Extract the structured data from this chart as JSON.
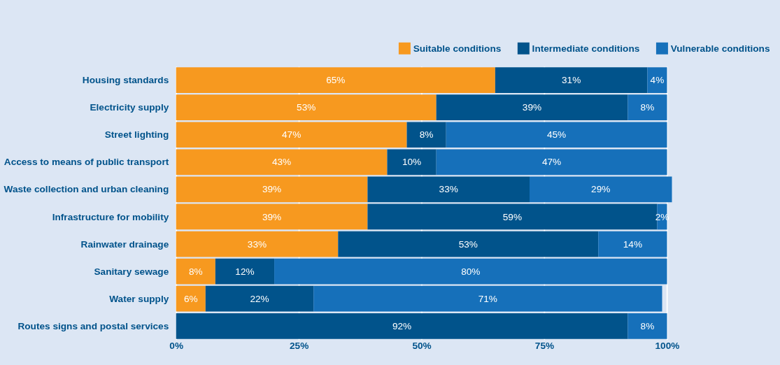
{
  "chart_data": {
    "type": "bar",
    "orientation": "horizontal",
    "stacked": true,
    "legend": "top right",
    "grid": "x",
    "categories": [
      "Housing standards",
      "Electricity supply",
      "Street lighting",
      "Access to means of public transport",
      "Waste collection and urban cleaning",
      "Infrastructure for mobility",
      "Rainwater drainage",
      "Sanitary sewage",
      "Water supply",
      "Routes signs and postal services"
    ],
    "series": [
      {
        "name": "Suitable conditions",
        "color": "#f7991f",
        "values": [
          65,
          53,
          47,
          43,
          39,
          39,
          33,
          8,
          6,
          null
        ],
        "value_labels": [
          "65%",
          "53%",
          "47%",
          "43%",
          "39%",
          "39%",
          "33%",
          "8%",
          "6%",
          null
        ]
      },
      {
        "name": "Intermediate conditions",
        "color": "#01538b",
        "values": [
          31,
          39,
          8,
          10,
          33,
          59,
          53,
          12,
          22,
          92
        ],
        "value_labels": [
          "31%",
          "39%",
          "8%",
          "10%",
          "33%",
          "59%",
          "53%",
          "12%",
          "22%",
          "92%"
        ]
      },
      {
        "name": "Vulnerable conditions",
        "color": "#1670ba",
        "values": [
          4,
          8,
          45,
          47,
          29,
          2,
          14,
          80,
          71,
          8
        ],
        "value_labels": [
          "4%",
          "8%",
          "45%",
          "47%",
          "29%",
          "2%",
          "14%",
          "80%",
          "71%",
          "8%"
        ]
      }
    ],
    "xlim": [
      0,
      101
    ],
    "xticks": [
      {
        "value": 0,
        "label": "0%"
      },
      {
        "value": 25,
        "label": "25%"
      },
      {
        "value": 50,
        "label": "50%"
      },
      {
        "value": 75,
        "label": "75%"
      },
      {
        "value": 100,
        "label": "100%"
      }
    ]
  }
}
